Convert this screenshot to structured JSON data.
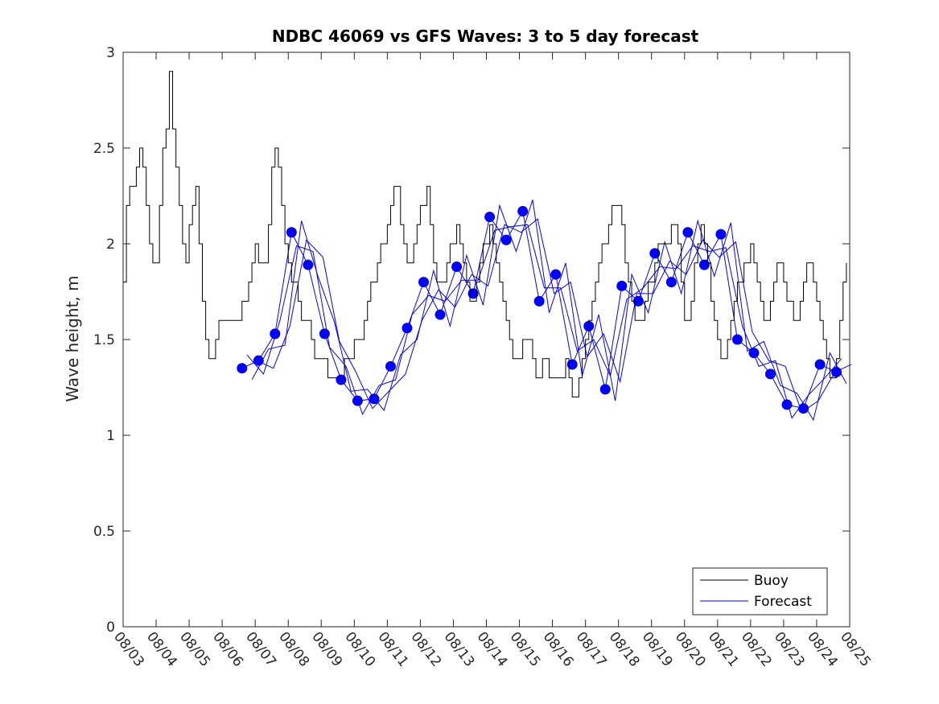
{
  "chart_data": {
    "type": "line",
    "title": "NDBC 46069 vs GFS Waves: 3 to 5 day forecast",
    "xlabel": "",
    "ylabel": "Wave height, m",
    "ylim": [
      0,
      3
    ],
    "xlim": [
      0,
      22
    ],
    "yticks": [
      "0",
      "0.5",
      "1",
      "1.5",
      "2",
      "2.5",
      "3"
    ],
    "xticks": [
      "08/03",
      "08/04",
      "08/05",
      "08/06",
      "08/07",
      "08/08",
      "08/09",
      "08/10",
      "08/11",
      "08/12",
      "08/13",
      "08/14",
      "08/15",
      "08/16",
      "08/17",
      "08/18",
      "08/19",
      "08/20",
      "08/21",
      "08/22",
      "08/23",
      "08/24",
      "08/25"
    ],
    "legend": {
      "position": "bottom-right",
      "entries": [
        "Buoy",
        "Forecast"
      ]
    },
    "colors": {
      "buoy": "#000000",
      "forecast": "#0000ff",
      "axes": "#262626"
    },
    "series": [
      {
        "name": "Buoy",
        "x_days": [
          0,
          0.1,
          0.2,
          0.3,
          0.4,
          0.5,
          0.6,
          0.7,
          0.8,
          0.9,
          1.0,
          1.1,
          1.2,
          1.3,
          1.4,
          1.5,
          1.6,
          1.7,
          1.8,
          1.9,
          2.0,
          2.1,
          2.2,
          2.3,
          2.4,
          2.5,
          2.6,
          2.7,
          2.8,
          2.9,
          3.0,
          3.1,
          3.2,
          3.3,
          3.4,
          3.5,
          3.6,
          3.7,
          3.8,
          3.9,
          4.0,
          4.1,
          4.2,
          4.3,
          4.4,
          4.5,
          4.6,
          4.7,
          4.8,
          4.9,
          5.0,
          5.1,
          5.2,
          5.3,
          5.4,
          5.5,
          5.6,
          5.7,
          5.8,
          5.9,
          6.0,
          6.1,
          6.2,
          6.3,
          6.4,
          6.5,
          6.6,
          6.7,
          6.8,
          6.9,
          7.0,
          7.1,
          7.2,
          7.3,
          7.4,
          7.5,
          7.6,
          7.7,
          7.8,
          7.9,
          8.0,
          8.1,
          8.2,
          8.3,
          8.4,
          8.5,
          8.6,
          8.7,
          8.8,
          8.9,
          9.0,
          9.1,
          9.2,
          9.3,
          9.4,
          9.5,
          9.6,
          9.7,
          9.8,
          9.9,
          10.0,
          10.1,
          10.2,
          10.3,
          10.4,
          10.5,
          10.6,
          10.7,
          10.8,
          10.9,
          11.0,
          11.1,
          11.2,
          11.3,
          11.4,
          11.5,
          11.6,
          11.7,
          11.8,
          11.9,
          12.0,
          12.1,
          12.2,
          12.3,
          12.4,
          12.5,
          12.6,
          12.7,
          12.8,
          12.9,
          13.0,
          13.1,
          13.2,
          13.3,
          13.4,
          13.5,
          13.6,
          13.7,
          13.8,
          13.9,
          14.0,
          14.1,
          14.2,
          14.3,
          14.4,
          14.5,
          14.6,
          14.7,
          14.8,
          14.9,
          15.0,
          15.1,
          15.2,
          15.3,
          15.4,
          15.5,
          15.6,
          15.7,
          15.8,
          15.9,
          16.0,
          16.1,
          16.2,
          16.3,
          16.4,
          16.5,
          16.6,
          16.7,
          16.8,
          16.9,
          17.0,
          17.1,
          17.2,
          17.3,
          17.4,
          17.5,
          17.6,
          17.7,
          17.8,
          17.9,
          18.0,
          18.1,
          18.2,
          18.3,
          18.4,
          18.5,
          18.6,
          18.7,
          18.8,
          18.9,
          19.0,
          19.1,
          19.2,
          19.3,
          19.4,
          19.5,
          19.6,
          19.7,
          19.8,
          19.9,
          20.0,
          20.1,
          20.2,
          20.3,
          20.4,
          20.5,
          20.6,
          20.7,
          20.8,
          20.9,
          21.0,
          21.1,
          21.2,
          21.3,
          21.4,
          21.5,
          21.6,
          21.7,
          21.8,
          21.9
        ],
        "values": [
          1.8,
          2.2,
          2.3,
          2.3,
          2.4,
          2.5,
          2.4,
          2.2,
          2.0,
          1.9,
          1.9,
          2.2,
          2.5,
          2.6,
          2.9,
          2.6,
          2.4,
          2.2,
          2.0,
          1.9,
          2.1,
          2.2,
          2.3,
          2.0,
          1.7,
          1.5,
          1.4,
          1.4,
          1.5,
          1.6,
          1.6,
          1.6,
          1.6,
          1.6,
          1.6,
          1.6,
          1.7,
          1.7,
          1.8,
          1.9,
          2.0,
          1.9,
          1.9,
          1.9,
          2.1,
          2.4,
          2.5,
          2.4,
          2.2,
          2.0,
          1.9,
          1.8,
          1.8,
          1.7,
          1.6,
          1.6,
          1.6,
          1.5,
          1.4,
          1.4,
          1.4,
          1.4,
          1.3,
          1.3,
          1.3,
          1.3,
          1.3,
          1.4,
          1.4,
          1.4,
          1.5,
          1.5,
          1.5,
          1.6,
          1.7,
          1.8,
          1.8,
          1.9,
          2.0,
          2.0,
          2.1,
          2.2,
          2.3,
          2.3,
          2.1,
          2.0,
          1.9,
          1.9,
          2.0,
          2.1,
          2.2,
          2.2,
          2.3,
          2.1,
          1.9,
          1.8,
          1.8,
          1.8,
          1.9,
          2.0,
          2.0,
          2.1,
          2.0,
          1.9,
          1.8,
          1.7,
          1.7,
          1.8,
          1.9,
          2.0,
          2.0,
          2.1,
          2.0,
          1.9,
          1.8,
          1.7,
          1.6,
          1.5,
          1.4,
          1.4,
          1.4,
          1.5,
          1.5,
          1.5,
          1.4,
          1.3,
          1.3,
          1.4,
          1.4,
          1.3,
          1.3,
          1.3,
          1.3,
          1.3,
          1.4,
          1.3,
          1.2,
          1.2,
          1.3,
          1.4,
          1.5,
          1.6,
          1.7,
          1.8,
          1.9,
          2.0,
          2.0,
          2.1,
          2.2,
          2.2,
          2.2,
          2.1,
          1.9,
          1.8,
          1.7,
          1.6,
          1.6,
          1.6,
          1.7,
          1.8,
          1.8,
          1.9,
          2.0,
          2.0,
          2.0,
          2.0,
          2.1,
          2.1,
          2.0,
          1.8,
          1.6,
          1.6,
          1.7,
          1.9,
          2.0,
          2.1,
          2.0,
          1.9,
          1.7,
          1.6,
          1.5,
          1.4,
          1.4,
          1.5,
          1.6,
          1.7,
          1.8,
          1.8,
          1.9,
          1.9,
          2.0,
          1.9,
          1.8,
          1.7,
          1.6,
          1.6,
          1.7,
          1.8,
          1.9,
          1.9,
          1.8,
          1.7,
          1.7,
          1.6,
          1.6,
          1.7,
          1.8,
          1.9,
          1.9,
          1.8,
          1.7,
          1.6,
          1.5,
          1.4,
          1.3,
          1.3,
          1.4,
          1.6,
          1.8,
          1.9
        ]
      },
      {
        "name": "Forecast",
        "x_days": [
          3.6,
          4.1,
          4.6,
          5.1,
          5.6,
          6.1,
          6.6,
          7.1,
          7.6,
          8.1,
          8.6,
          9.1,
          9.6,
          10.1,
          10.6,
          11.1,
          11.6,
          12.1,
          12.6,
          13.1,
          13.6,
          14.1,
          14.6,
          15.1,
          15.6,
          16.1,
          16.6,
          17.1,
          17.6,
          18.1,
          18.6,
          19.1,
          19.6,
          20.1,
          20.6,
          21.1,
          21.6
        ],
        "values": [
          1.35,
          1.39,
          1.53,
          2.06,
          1.89,
          1.53,
          1.29,
          1.18,
          1.19,
          1.36,
          1.56,
          1.8,
          1.63,
          1.88,
          1.74,
          2.14,
          2.02,
          2.17,
          1.7,
          1.84,
          1.37,
          1.57,
          1.24,
          1.78,
          1.7,
          1.95,
          1.8,
          2.06,
          1.89,
          2.05,
          1.5,
          1.43,
          1.32,
          1.16,
          1.14,
          1.37,
          1.33
        ]
      }
    ]
  }
}
